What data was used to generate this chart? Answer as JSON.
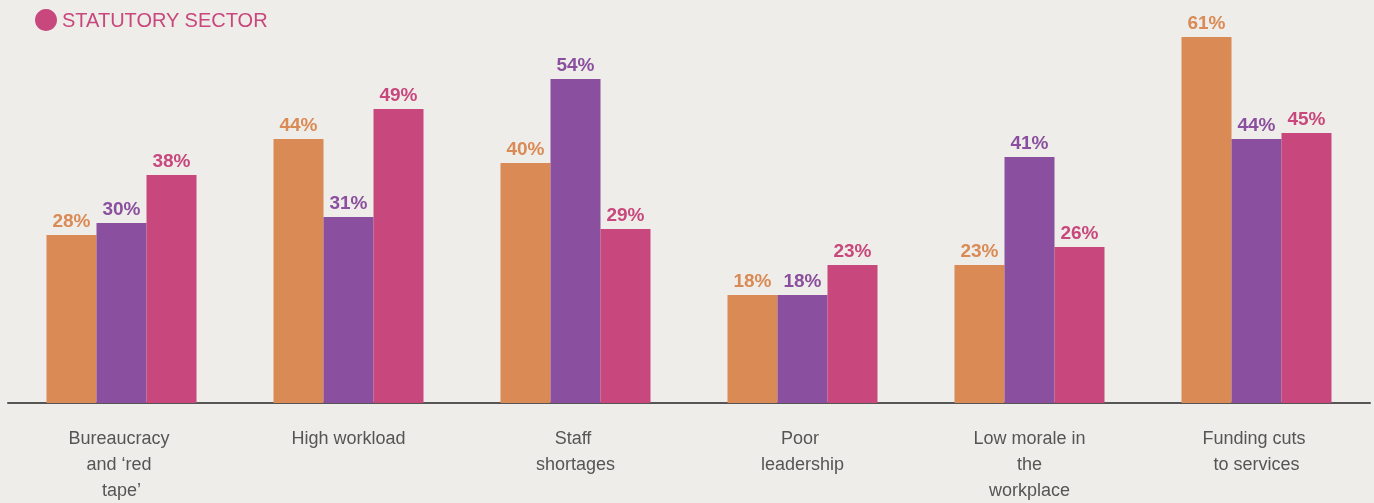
{
  "chart_data": {
    "type": "bar",
    "categories": [
      "Bureaucracy and ‘red tape’",
      "High workload",
      "Staff shortages",
      "Poor leadership",
      "Low morale in the workplace",
      "Funding cuts to services"
    ],
    "series": [
      {
        "color": "#d98a55",
        "values": [
          28,
          44,
          40,
          18,
          23,
          61
        ],
        "value_labels": [
          "28%",
          "44%",
          "40%",
          "18%",
          "23%",
          "61%"
        ]
      },
      {
        "color": "#8a4f9e",
        "values": [
          30,
          31,
          54,
          18,
          41,
          44
        ],
        "value_labels": [
          "30%",
          "31%",
          "54%",
          "18%",
          "41%",
          "44%"
        ]
      },
      {
        "name": "STATUTORY SECTOR",
        "color": "#c8477c",
        "values": [
          38,
          49,
          29,
          23,
          26,
          45
        ],
        "value_labels": [
          "38%",
          "49%",
          "29%",
          "23%",
          "26%",
          "45%"
        ]
      }
    ],
    "legend": "top left"
  }
}
